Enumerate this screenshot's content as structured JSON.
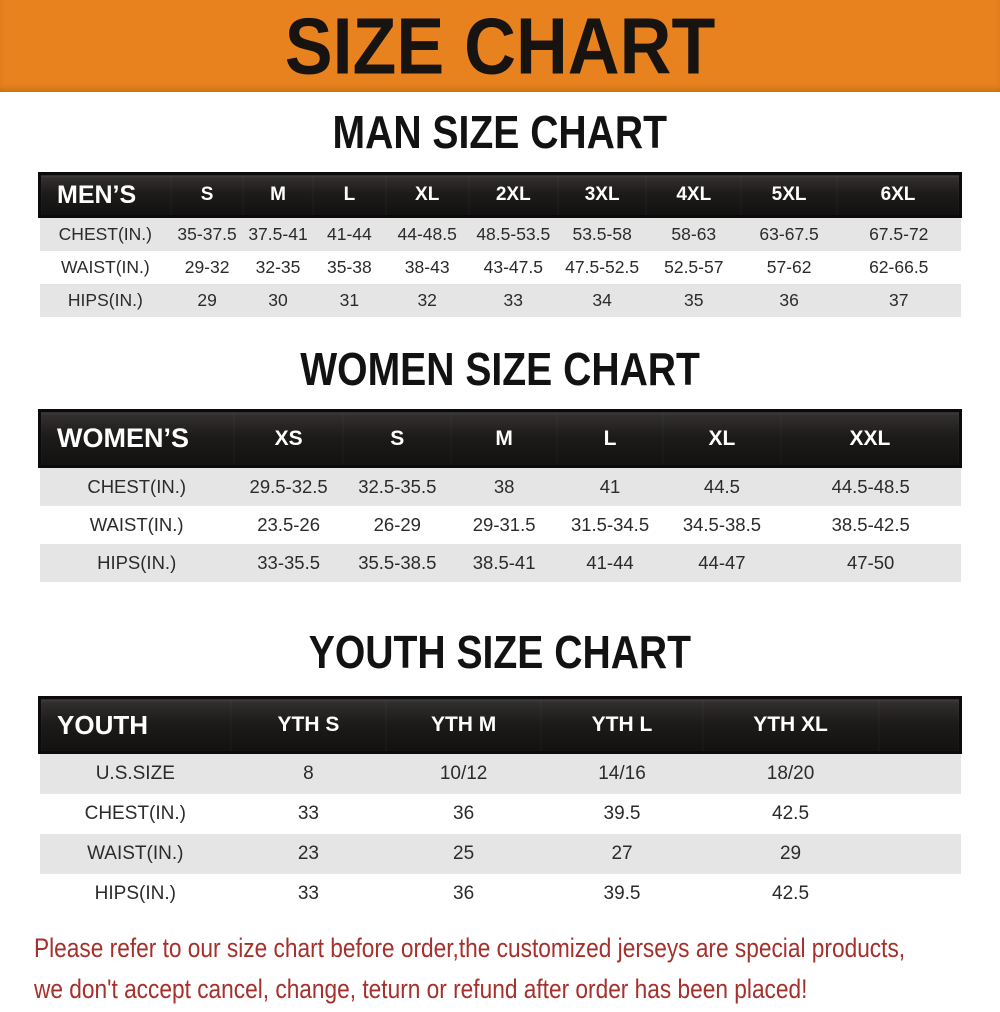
{
  "banner": {
    "title": "SIZE CHART"
  },
  "sections": [
    {
      "id": "men",
      "title": "MAN SIZE CHART",
      "header_label": "MEN’S",
      "columns": [
        "S",
        "M",
        "L",
        "XL",
        "2XL",
        "3XL",
        "4XL",
        "5XL",
        "6XL"
      ],
      "rows": [
        {
          "label": "CHEST(IN.)",
          "values": [
            "35-37.5",
            "37.5-41",
            "41-44",
            "44-48.5",
            "48.5-53.5",
            "53.5-58",
            "58-63",
            "63-67.5",
            "67.5-72"
          ]
        },
        {
          "label": "WAIST(IN.)",
          "values": [
            "29-32",
            "32-35",
            "35-38",
            "38-43",
            "43-47.5",
            "47.5-52.5",
            "52.5-57",
            "57-62",
            "62-66.5"
          ]
        },
        {
          "label": "HIPS(IN.)",
          "values": [
            "29",
            "30",
            "31",
            "32",
            "33",
            "34",
            "35",
            "36",
            "37"
          ]
        }
      ]
    },
    {
      "id": "women",
      "title": "WOMEN SIZE CHART",
      "header_label": "WOMEN’S",
      "columns": [
        "XS",
        "S",
        "M",
        "L",
        "XL",
        "XXL"
      ],
      "rows": [
        {
          "label": "CHEST(IN.)",
          "values": [
            "29.5-32.5",
            "32.5-35.5",
            "38",
            "41",
            "44.5",
            "44.5-48.5"
          ]
        },
        {
          "label": "WAIST(IN.)",
          "values": [
            "23.5-26",
            "26-29",
            "29-31.5",
            "31.5-34.5",
            "34.5-38.5",
            "38.5-42.5"
          ]
        },
        {
          "label": "HIPS(IN.)",
          "values": [
            "33-35.5",
            "35.5-38.5",
            "38.5-41",
            "41-44",
            "44-47",
            "47-50"
          ]
        }
      ]
    },
    {
      "id": "youth",
      "title": "YOUTH SIZE CHART",
      "header_label": "YOUTH",
      "columns": [
        "YTH S",
        "YTH M",
        "YTH L",
        "YTH XL"
      ],
      "rows": [
        {
          "label": "U.S.SIZE",
          "values": [
            "8",
            "10/12",
            "14/16",
            "18/20"
          ]
        },
        {
          "label": "CHEST(IN.)",
          "values": [
            "33",
            "36",
            "39.5",
            "42.5"
          ]
        },
        {
          "label": "WAIST(IN.)",
          "values": [
            "23",
            "25",
            "27",
            "29"
          ]
        },
        {
          "label": "HIPS(IN.)",
          "values": [
            "33",
            "36",
            "39.5",
            "42.5"
          ]
        }
      ]
    }
  ],
  "note": {
    "lines": [
      "Please refer to our size chart before order,the customized jerseys are special products,",
      "we don't accept cancel, change, teturn or refund after order has been placed!"
    ]
  },
  "colors": {
    "banner_bg": "#E8821E",
    "banner_text": "#171310",
    "header_bar_bg": "#1A1A1A",
    "header_bar_text": "#FFFFFF",
    "row_alt_bg": "#E5E5E5",
    "row_text": "#2B2B2B",
    "note_text": "#A6302B"
  }
}
